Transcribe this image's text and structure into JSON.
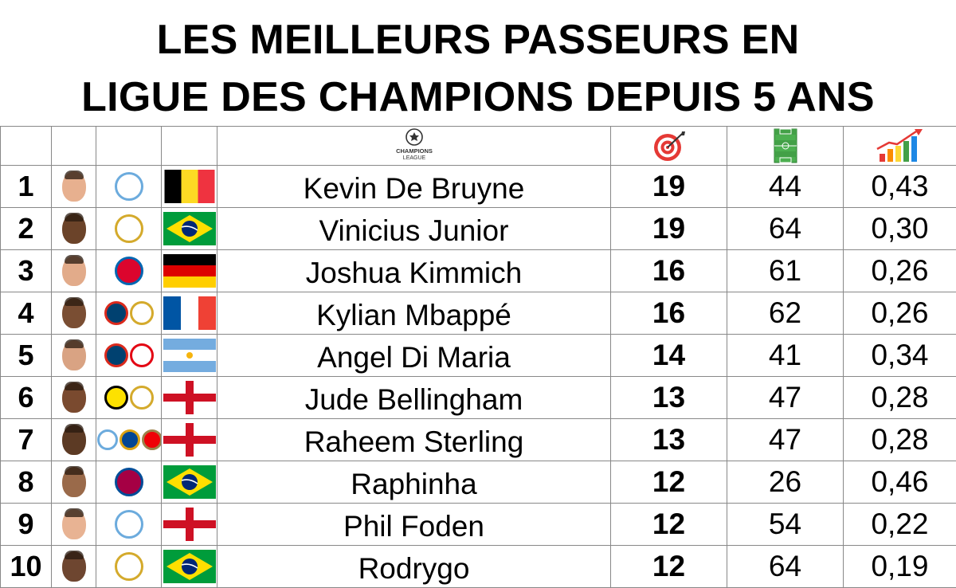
{
  "title_line1": "LES MEILLEURS PASSEURS EN",
  "title_line2": "LIGUE DES CHAMPIONS DEPUIS 5 ANS",
  "header": {
    "competition_logo_text": "CHAMPIONS LEAGUE",
    "icons": [
      "target-icon",
      "pitch-icon",
      "growth-chart-icon"
    ]
  },
  "colors": {
    "real_madrid": "#f2c200",
    "man_city": "#6cabdd",
    "psg": "#004170",
    "bayern": "#dc052d",
    "dortmund": "#fde100",
    "chelsea": "#034694",
    "arsenal": "#ef0107",
    "barcelona": "#a50044",
    "benfica": "#e30613"
  },
  "rows": [
    {
      "rank": "1",
      "name": "Kevin De Bruyne",
      "assists": "19",
      "matches": "44",
      "ratio": "0,43",
      "skin": "#e7b08f",
      "clubs": [
        "man-city"
      ],
      "flag": "belgium"
    },
    {
      "rank": "2",
      "name": "Vinicius Junior",
      "assists": "19",
      "matches": "64",
      "ratio": "0,30",
      "skin": "#6b4329",
      "clubs": [
        "real-madrid"
      ],
      "flag": "brazil"
    },
    {
      "rank": "3",
      "name": "Joshua Kimmich",
      "assists": "16",
      "matches": "61",
      "ratio": "0,26",
      "skin": "#e2ab8a",
      "clubs": [
        "bayern"
      ],
      "flag": "germany"
    },
    {
      "rank": "4",
      "name": "Kylian Mbappé",
      "assists": "16",
      "matches": "62",
      "ratio": "0,26",
      "skin": "#7a4e33",
      "clubs": [
        "psg",
        "real-madrid"
      ],
      "flag": "france"
    },
    {
      "rank": "5",
      "name": "Angel Di Maria",
      "assists": "14",
      "matches": "41",
      "ratio": "0,34",
      "skin": "#d9a383",
      "clubs": [
        "psg",
        "benfica"
      ],
      "flag": "argentina"
    },
    {
      "rank": "6",
      "name": "Jude Bellingham",
      "assists": "13",
      "matches": "47",
      "ratio": "0,28",
      "skin": "#7a4a2f",
      "clubs": [
        "dortmund",
        "real-madrid"
      ],
      "flag": "england"
    },
    {
      "rank": "7",
      "name": "Raheem Sterling",
      "assists": "13",
      "matches": "47",
      "ratio": "0,28",
      "skin": "#5c3a24",
      "clubs": [
        "man-city",
        "chelsea",
        "arsenal"
      ],
      "flag": "england"
    },
    {
      "rank": "8",
      "name": "Raphinha",
      "assists": "12",
      "matches": "26",
      "ratio": "0,46",
      "skin": "#9a6a4a",
      "clubs": [
        "barcelona"
      ],
      "flag": "brazil"
    },
    {
      "rank": "9",
      "name": "Phil Foden",
      "assists": "12",
      "matches": "54",
      "ratio": "0,22",
      "skin": "#e8b393",
      "clubs": [
        "man-city"
      ],
      "flag": "england"
    },
    {
      "rank": "10",
      "name": "Rodrygo",
      "assists": "12",
      "matches": "64",
      "ratio": "0,19",
      "skin": "#6e4630",
      "clubs": [
        "real-madrid"
      ],
      "flag": "brazil"
    }
  ]
}
